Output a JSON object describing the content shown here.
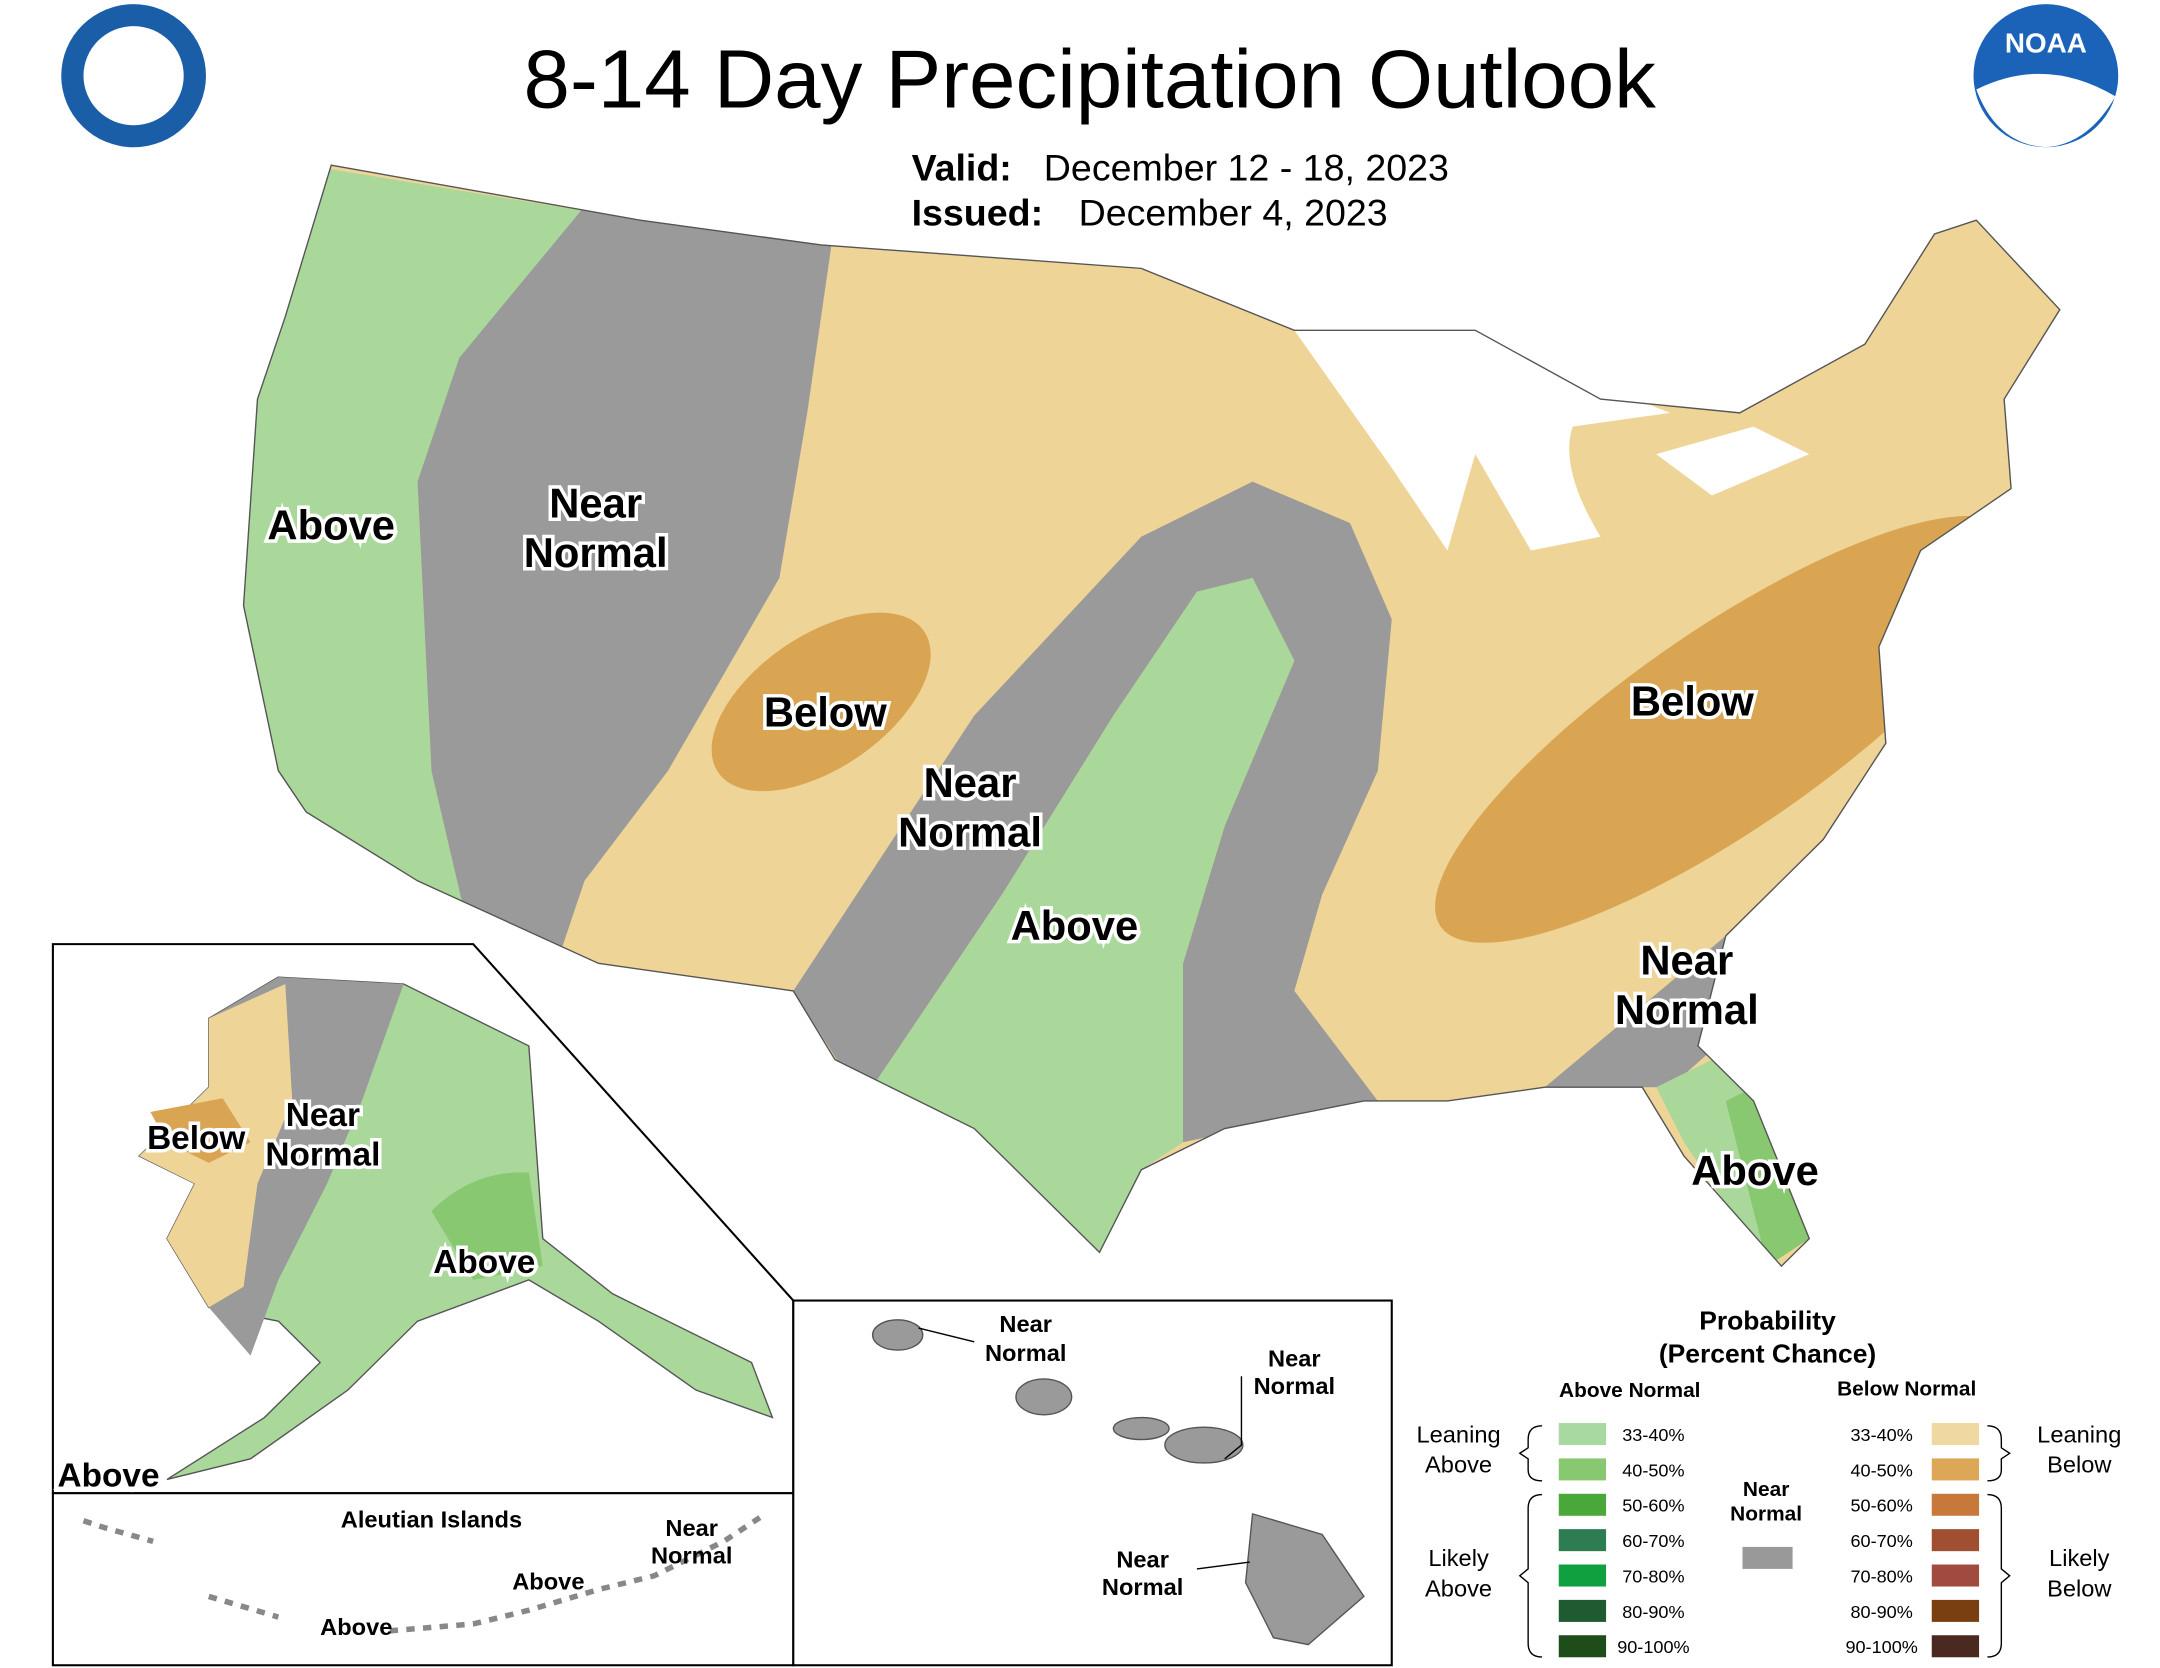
{
  "header": {
    "title": "8-14 Day Precipitation Outlook",
    "valid_label": "Valid:",
    "valid": "December 12 - 18, 2023",
    "issued_label": "Issued:",
    "issued": "December 4, 2023",
    "noaa": "NOAA"
  },
  "conus_labels": [
    {
      "lines": [
        "Above"
      ]
    },
    {
      "lines": [
        "Near",
        "Normal"
      ]
    },
    {
      "lines": [
        "Below"
      ]
    },
    {
      "lines": [
        "Near",
        "Normal"
      ]
    },
    {
      "lines": [
        "Above"
      ]
    },
    {
      "lines": [
        "Below"
      ]
    },
    {
      "lines": [
        "Near",
        "Normal"
      ]
    },
    {
      "lines": [
        "Above"
      ]
    }
  ],
  "alaska_labels": [
    {
      "lines": [
        "Below"
      ]
    },
    {
      "lines": [
        "Near",
        "Normal"
      ]
    },
    {
      "lines": [
        "Above"
      ]
    },
    {
      "lines": [
        "Above"
      ]
    }
  ],
  "aleutian": {
    "title": "Aleutian Islands",
    "labels": [
      {
        "lines": [
          "Near",
          "Normal"
        ]
      },
      {
        "lines": [
          "Above"
        ]
      },
      {
        "lines": [
          "Above"
        ]
      }
    ]
  },
  "hawaii_labels": [
    {
      "lines": [
        "Near",
        "Normal"
      ]
    },
    {
      "lines": [
        "Near",
        "Normal"
      ]
    },
    {
      "lines": [
        "Near",
        "Normal"
      ]
    }
  ],
  "legend": {
    "title_lines": [
      "Probability",
      "(Percent Chance)"
    ],
    "above_header": "Above Normal",
    "below_header": "Below Normal",
    "above_items": [
      {
        "label": "33-40%",
        "color": "#a8d9a0"
      },
      {
        "label": "40-50%",
        "color": "#88c870"
      },
      {
        "label": "50-60%",
        "color": "#4aa83a"
      },
      {
        "label": "60-70%",
        "color": "#2e7d52"
      },
      {
        "label": "70-80%",
        "color": "#10a040"
      },
      {
        "label": "80-90%",
        "color": "#1f5a30"
      },
      {
        "label": "90-100%",
        "color": "#1e4d1a"
      }
    ],
    "below_items": [
      {
        "label": "33-40%",
        "color": "#f0d9a0"
      },
      {
        "label": "40-50%",
        "color": "#dca858"
      },
      {
        "label": "50-60%",
        "color": "#c8783a"
      },
      {
        "label": "60-70%",
        "color": "#a05030"
      },
      {
        "label": "70-80%",
        "color": "#a04a40"
      },
      {
        "label": "80-90%",
        "color": "#7a3f10"
      },
      {
        "label": "90-100%",
        "color": "#4a2a20"
      }
    ],
    "near_normal": {
      "lines": [
        "Near",
        "Normal"
      ],
      "color": "#999999"
    },
    "leaning_above": [
      "Leaning",
      "Above"
    ],
    "likely_above": [
      "Likely",
      "Above"
    ],
    "leaning_below": [
      "Leaning",
      "Below"
    ],
    "likely_below": [
      "Likely",
      "Below"
    ]
  }
}
